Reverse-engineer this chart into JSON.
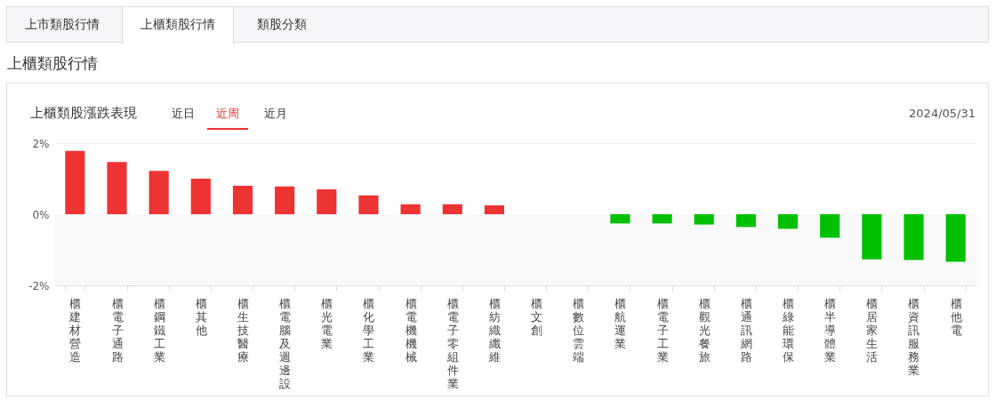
{
  "chart_data": {
    "type": "bar",
    "title": "上櫃類股漲跌表現",
    "annotations": [
      "上市類股行情",
      "上櫃類股行情",
      "類股分類",
      "上櫃類股行情",
      "近日",
      "近周",
      "近月",
      "2024/05/31"
    ],
    "categories": [
      "櫃建材營造",
      "櫃電子通路",
      "櫃鋼鐵工業",
      "櫃其他",
      "櫃生技醫療",
      "櫃電腦及週邊設",
      "櫃光電業",
      "櫃化學工業",
      "櫃電機機械",
      "櫃電子零組件業",
      "櫃紡織纖維",
      "櫃文創",
      "櫃數位雲端",
      "櫃航運業",
      "櫃電子工業",
      "櫃觀光餐旅",
      "櫃通訊網路",
      "櫃綠能環保",
      "櫃半導體業",
      "櫃居家生活",
      "櫃資訊服務業",
      "櫃他電"
    ],
    "values": [
      1.78,
      1.47,
      1.22,
      1.0,
      0.8,
      0.78,
      0.7,
      0.53,
      0.28,
      0.28,
      0.25,
      0,
      0,
      -0.26,
      -0.26,
      -0.29,
      -0.36,
      -0.41,
      -0.66,
      -1.27,
      -1.29,
      -1.34
    ],
    "colors": [
      "#ee3333",
      "#ee3333",
      "#ee3333",
      "#ee3333",
      "#ee3333",
      "#ee3333",
      "#ee3333",
      "#ee3333",
      "#ee3333",
      "#ee3333",
      "#ee3333",
      "#ee3333",
      "#ee3333",
      "#00c000",
      "#00c000",
      "#00c000",
      "#00c000",
      "#00c000",
      "#00c000",
      "#00c000",
      "#00c000",
      "#00c000"
    ],
    "ylim": [
      -2,
      2
    ],
    "yticks": [
      {
        "value": -2,
        "label": "-2%"
      },
      {
        "value": 0,
        "label": "0%"
      },
      {
        "value": 2,
        "label": "2%"
      }
    ],
    "grid": "y",
    "bands": [
      {
        "axis": "y",
        "from": -2,
        "to": 0,
        "color": "#f9f9f9"
      }
    ]
  }
}
